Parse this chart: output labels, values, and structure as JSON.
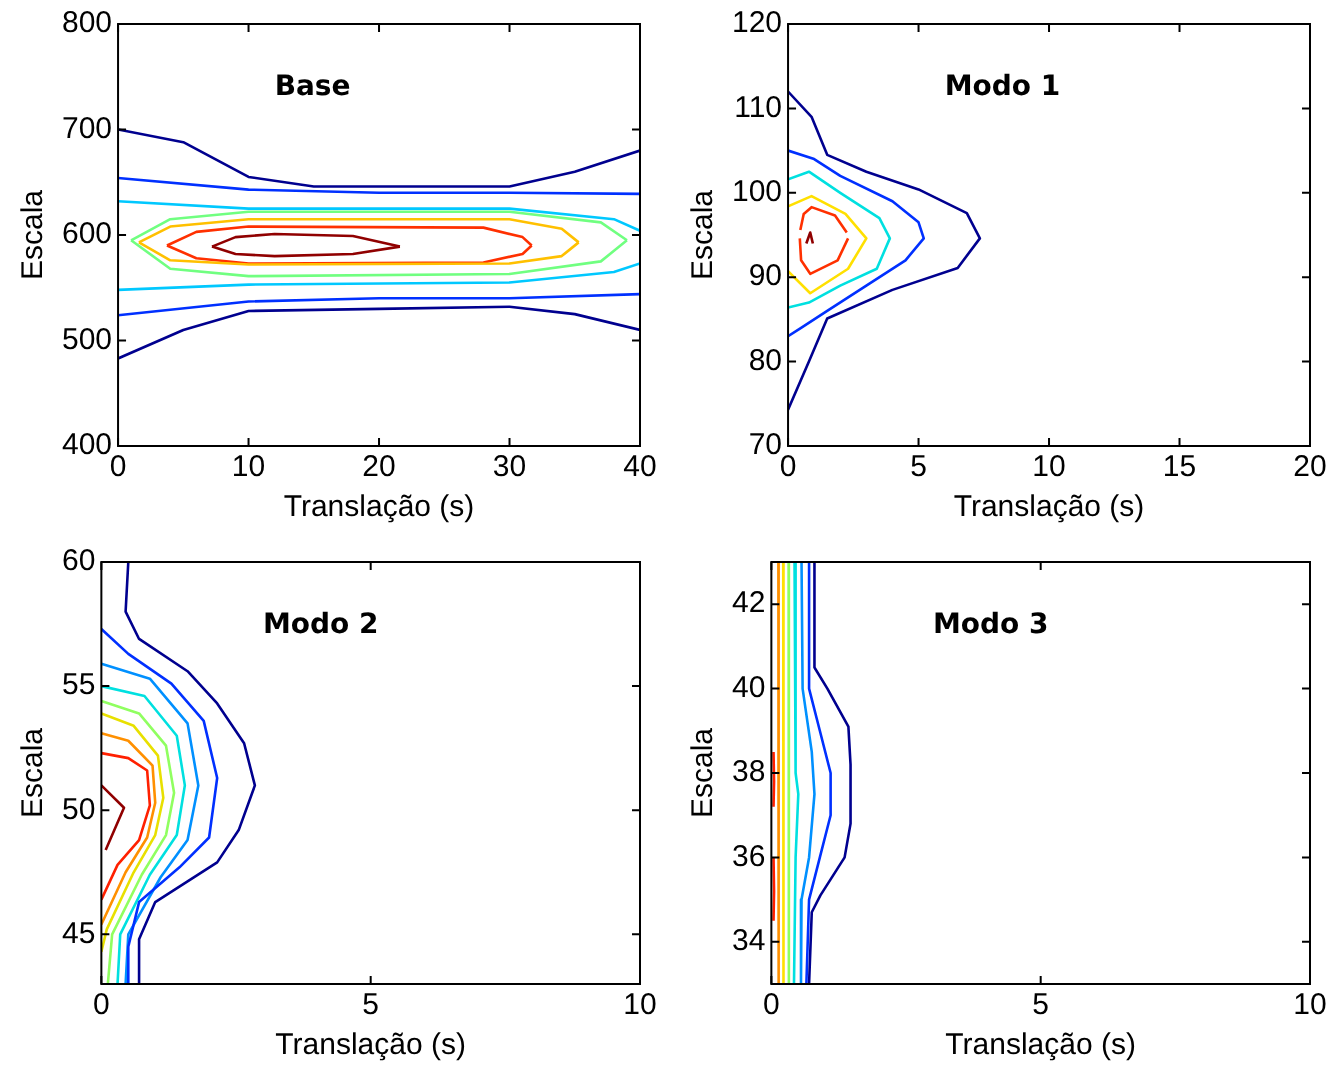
{
  "chart_data": [
    {
      "type": "line",
      "xlabel": "Translação (s)",
      "ylabel": "Escala",
      "annotations": [
        "Base"
      ],
      "xlim": [
        0,
        40
      ],
      "xticks": [
        0,
        10,
        20,
        30,
        40
      ],
      "ylim": [
        400,
        800
      ],
      "yticks": [
        400,
        500,
        600,
        700,
        800
      ],
      "grid": false,
      "legend": false,
      "marker": "none",
      "line_style": "solid",
      "series": [
        {
          "color": "#00008f",
          "x": [
            0,
            5,
            10,
            15,
            30,
            35,
            40
          ],
          "values": [
            700,
            688,
            655,
            646,
            646,
            660,
            680
          ]
        },
        {
          "color": "#00008f",
          "x": [
            0,
            5,
            10,
            20,
            30,
            35,
            40
          ],
          "values": [
            483,
            510,
            528,
            530,
            532,
            525,
            510
          ]
        },
        {
          "color": "#0030ff",
          "x": [
            0,
            10,
            20,
            30,
            40
          ],
          "values": [
            654,
            643,
            640,
            640,
            639
          ]
        },
        {
          "color": "#0030ff",
          "x": [
            0,
            10,
            20,
            30,
            40
          ],
          "values": [
            524,
            537,
            540,
            540,
            544
          ]
        },
        {
          "color": "#00c8ff",
          "x": [
            0,
            10,
            30,
            38,
            40
          ],
          "values": [
            632,
            625,
            625,
            615,
            604
          ]
        },
        {
          "color": "#00c8ff",
          "x": [
            0,
            10,
            30,
            38,
            40
          ],
          "values": [
            548,
            553,
            555,
            565,
            573
          ]
        },
        {
          "color": "#70ff80",
          "x": [
            1,
            4,
            10,
            30,
            37,
            39
          ],
          "values": [
            595,
            615,
            622,
            622,
            612,
            595
          ]
        },
        {
          "color": "#70ff80",
          "x": [
            1,
            4,
            10,
            30,
            37,
            39
          ],
          "values": [
            595,
            568,
            561,
            563,
            575,
            595
          ]
        },
        {
          "color": "#ffc000",
          "x": [
            1.6,
            4,
            10,
            30,
            34,
            35.3
          ],
          "values": [
            593,
            608,
            615,
            615,
            606,
            593
          ]
        },
        {
          "color": "#ffc000",
          "x": [
            1.6,
            4,
            10,
            30,
            34,
            35.3
          ],
          "values": [
            593,
            576,
            572,
            573,
            580,
            593
          ]
        },
        {
          "color": "#ff3000",
          "x": [
            3.75,
            6,
            10,
            28,
            31,
            31.7
          ],
          "values": [
            590,
            603,
            608,
            607,
            598,
            590
          ]
        },
        {
          "color": "#ff3000",
          "x": [
            3.75,
            6,
            10,
            28,
            31,
            31.7
          ],
          "values": [
            590,
            578,
            573,
            574,
            582,
            590
          ]
        },
        {
          "color": "#900000",
          "x": [
            7.2,
            9,
            12,
            18,
            21.6
          ],
          "values": [
            589,
            598,
            601,
            599,
            589
          ]
        },
        {
          "color": "#900000",
          "x": [
            7.2,
            9,
            12,
            18,
            21.6
          ],
          "values": [
            589,
            582,
            580,
            582,
            589
          ]
        }
      ]
    },
    {
      "type": "line",
      "xlabel": "Translação (s)",
      "ylabel": "Escala",
      "annotations": [
        "Modo 1"
      ],
      "xlim": [
        0,
        20
      ],
      "xticks": [
        0,
        5,
        10,
        15,
        20
      ],
      "ylim": [
        70,
        120
      ],
      "yticks": [
        70,
        80,
        90,
        100,
        110,
        120
      ],
      "grid": false,
      "legend": false,
      "marker": "none",
      "line_style": "solid",
      "series": [
        {
          "color": "#00008f",
          "x": [
            0,
            0.9,
            1.5,
            3,
            5,
            6.85,
            7.35,
            6.5,
            4,
            1.5,
            0.8,
            0
          ],
          "values": [
            112,
            109,
            104.5,
            102.5,
            100.4,
            97.6,
            94.6,
            91.1,
            88.5,
            85.1,
            80,
            74.3
          ]
        },
        {
          "color": "#0030ff",
          "x": [
            0,
            1,
            2,
            4,
            5,
            5.2,
            4.5,
            3,
            1.5,
            0.5,
            0
          ],
          "values": [
            105,
            104,
            102,
            99,
            96.5,
            94.6,
            92,
            89,
            86,
            84,
            83
          ]
        },
        {
          "color": "#00e0e0",
          "x": [
            0,
            0.8,
            2,
            3.5,
            3.9,
            3.4,
            2,
            0.8,
            0
          ],
          "values": [
            101.6,
            102.5,
            100,
            97,
            94.6,
            91,
            89,
            87,
            86.4
          ]
        },
        {
          "color": "#ffe000",
          "x": [
            0,
            0.9,
            2.2,
            3,
            2.3,
            0.85,
            0
          ],
          "values": [
            98.4,
            99.6,
            97.5,
            94.6,
            91,
            88.1,
            90.7
          ]
        },
        {
          "color": "#ff3000",
          "x": [
            0.47,
            0.6,
            0.9,
            1.8,
            2.25
          ],
          "values": [
            95.6,
            97.5,
            98.3,
            97.3,
            95.3
          ]
        },
        {
          "color": "#ff3000",
          "x": [
            0.45,
            0.5,
            0.85,
            1.9,
            2.3
          ],
          "values": [
            94.6,
            92,
            90.4,
            92,
            94.6
          ]
        },
        {
          "color": "#900000",
          "x": [
            0.7,
            0.85,
            0.95
          ],
          "values": [
            94,
            95.3,
            94
          ]
        }
      ]
    },
    {
      "type": "line",
      "xlabel": "Translação (s)",
      "ylabel": "Escala",
      "annotations": [
        "Modo 2"
      ],
      "xlim": [
        0,
        10
      ],
      "xticks": [
        0,
        5,
        10
      ],
      "ylim": [
        43,
        60
      ],
      "yticks": [
        45,
        50,
        55,
        60
      ],
      "grid": false,
      "legend": false,
      "marker": "none",
      "line_style": "solid",
      "series": [
        {
          "color": "#00008f",
          "x": [
            0.5,
            0.45,
            0.7,
            1.6,
            2.15,
            2.65,
            2.85,
            2.55,
            2.15,
            1.0,
            0.7,
            0.7
          ],
          "values": [
            60,
            58,
            56.9,
            55.6,
            54.3,
            52.7,
            51,
            49.2,
            47.9,
            46.3,
            44.8,
            43
          ]
        },
        {
          "color": "#0030ff",
          "x": [
            0,
            0.5,
            1.3,
            1.9,
            2.15,
            2.0,
            1.45,
            0.7,
            0.5,
            0.5
          ],
          "values": [
            57.3,
            56.3,
            55.1,
            53.6,
            51.3,
            48.9,
            47.7,
            46.3,
            44.5,
            43
          ]
        },
        {
          "color": "#0090ff",
          "x": [
            0,
            0.9,
            1.6,
            1.8,
            1.6,
            1.1,
            0.5,
            0.45
          ],
          "values": [
            55.9,
            55.3,
            53.5,
            51,
            48.8,
            47.3,
            45,
            43
          ]
        },
        {
          "color": "#00e0e0",
          "x": [
            0,
            0.8,
            1.4,
            1.55,
            1.4,
            0.9,
            0.35,
            0.3
          ],
          "values": [
            55,
            54.6,
            53,
            51,
            49,
            47.4,
            45,
            43
          ]
        },
        {
          "color": "#90ff60",
          "x": [
            0,
            0.7,
            1.2,
            1.35,
            1.2,
            0.75,
            0.2,
            0.12
          ],
          "values": [
            54.4,
            53.9,
            52.6,
            50.7,
            49,
            47.4,
            45,
            43
          ]
        },
        {
          "color": "#e8e000",
          "x": [
            0,
            0.6,
            1.05,
            1.15,
            1.0,
            0.6,
            0.1,
            0
          ],
          "values": [
            53.9,
            53.4,
            52.2,
            50.5,
            49,
            47.5,
            45.2,
            44.3
          ]
        },
        {
          "color": "#ff9000",
          "x": [
            0,
            0.5,
            0.95,
            1.0,
            0.85,
            0.45,
            0
          ],
          "values": [
            53.1,
            52.8,
            51.8,
            50.3,
            48.9,
            47.5,
            45.4
          ]
        },
        {
          "color": "#ff2000",
          "x": [
            0,
            0.5,
            0.85,
            0.9,
            0.7,
            0.3,
            0
          ],
          "values": [
            52.3,
            52.1,
            51.6,
            50.2,
            48.8,
            47.8,
            46.4
          ]
        },
        {
          "color": "#900000",
          "x": [
            0,
            0.42,
            0.08
          ],
          "values": [
            51,
            50.1,
            48.4
          ]
        }
      ]
    },
    {
      "type": "line",
      "xlabel": "Translação (s)",
      "ylabel": "Escala",
      "annotations": [
        "Modo 3"
      ],
      "xlim": [
        0,
        10
      ],
      "xticks": [
        0,
        5,
        10
      ],
      "ylim": [
        33,
        43
      ],
      "yticks": [
        34,
        36,
        38,
        40,
        42
      ],
      "grid": false,
      "legend": false,
      "marker": "none",
      "line_style": "solid",
      "series": [
        {
          "color": "#00008f",
          "x": [
            0.8,
            0.8,
            1.04,
            1.43,
            1.47,
            1.47,
            1.36,
            0.91,
            0.75,
            0.7
          ],
          "values": [
            43,
            40.5,
            40,
            39.1,
            38.2,
            36.8,
            36,
            35.1,
            34.7,
            33
          ]
        },
        {
          "color": "#0030ff",
          "x": [
            0.7,
            0.7,
            0.9,
            1.1,
            1.1,
            0.9,
            0.7,
            0.65
          ],
          "values": [
            43,
            40,
            39,
            38,
            37,
            36,
            35,
            33
          ]
        },
        {
          "color": "#0090ff",
          "x": [
            0.56,
            0.58,
            0.75,
            0.8,
            0.7,
            0.56,
            0.55
          ],
          "values": [
            43,
            40,
            38.5,
            37.5,
            36,
            35,
            33
          ]
        },
        {
          "color": "#00e0e0",
          "x": [
            0.43,
            0.45,
            0.5,
            0.45,
            0.42
          ],
          "values": [
            43,
            38,
            37.5,
            36,
            33
          ]
        },
        {
          "color": "#90ff60",
          "x": [
            0.32,
            0.33,
            0.32
          ],
          "values": [
            43,
            38,
            33
          ]
        },
        {
          "color": "#ffe000",
          "x": [
            0.22,
            0.23,
            0.22
          ],
          "values": [
            43,
            38,
            33
          ]
        },
        {
          "color": "#ff9000",
          "x": [
            0.13,
            0.14,
            0.13
          ],
          "values": [
            43,
            38,
            33
          ]
        },
        {
          "color": "#ff2000",
          "x": [
            0.04,
            0.05,
            0.04
          ],
          "values": [
            38.5,
            37.8,
            37.2
          ]
        },
        {
          "color": "#ff2000",
          "x": [
            0.04,
            0.05,
            0.04
          ],
          "values": [
            36,
            35.2,
            34.5
          ]
        }
      ]
    }
  ]
}
